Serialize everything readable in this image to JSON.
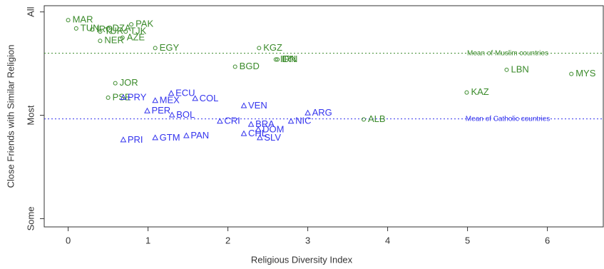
{
  "chart_data": {
    "type": "scatter",
    "x_label": "Religious Diversity Index",
    "y_label": "Close Friends with Similar Religion",
    "xlim": [
      -0.3,
      6.7
    ],
    "xticks": [
      0,
      1,
      2,
      3,
      4,
      5,
      6
    ],
    "ylim": [
      0.92,
      3.06
    ],
    "yticks": [
      {
        "value": 1,
        "label": "Some"
      },
      {
        "value": 2,
        "label": "Most"
      },
      {
        "value": 3,
        "label": "All"
      }
    ],
    "series": [
      {
        "name": "Muslim countries",
        "color": "#3a8a2a",
        "marker": "circle",
        "labels": [
          "MAR",
          "TUN",
          "IRQ",
          "DZA",
          "TUR",
          "PAK",
          "TJK",
          "AZE",
          "NER",
          "EGY",
          "KGZ",
          "IDN",
          "IRN",
          "BGD",
          "JOR",
          "PSE",
          "LBN",
          "MYS",
          "KAZ",
          "ALB"
        ],
        "x": [
          0,
          0.1,
          0.3,
          0.5,
          0.4,
          0.79,
          0.72,
          0.68,
          0.4,
          1.09,
          2.39,
          2.6,
          2.62,
          2.09,
          0.59,
          0.5,
          5.49,
          6.3,
          4.99,
          3.7
        ],
        "values": [
          2.92,
          2.84,
          2.83,
          2.84,
          2.81,
          2.88,
          2.81,
          2.75,
          2.72,
          2.65,
          2.65,
          2.54,
          2.54,
          2.47,
          2.31,
          2.17,
          2.44,
          2.4,
          2.22,
          1.96
        ]
      },
      {
        "name": "Catholic countries",
        "color": "#3333ee",
        "marker": "triangle",
        "labels": [
          "PRY",
          "ECU",
          "MEX",
          "COL",
          "PER",
          "BOL",
          "VEN",
          "CRI",
          "BRA",
          "DOM",
          "CHL",
          "SLV",
          "NIC",
          "ARG",
          "PRI",
          "GTM",
          "PAN"
        ],
        "x": [
          0.69,
          1.29,
          1.09,
          1.59,
          0.99,
          1.3,
          2.2,
          1.9,
          2.29,
          2.38,
          2.2,
          2.4,
          2.79,
          3.0,
          0.69,
          1.09,
          1.48
        ],
        "values": [
          2.17,
          2.21,
          2.14,
          2.16,
          2.04,
          2.0,
          2.09,
          1.94,
          1.91,
          1.86,
          1.82,
          1.78,
          1.94,
          2.02,
          1.76,
          1.78,
          1.8
        ]
      }
    ],
    "reference_lines": [
      {
        "value": 2.6,
        "label": "Mean of Muslim countries",
        "color": "#3a8a2a"
      },
      {
        "value": 1.965,
        "label": "Mean of Catholic countries",
        "color": "#3333ee"
      }
    ]
  }
}
